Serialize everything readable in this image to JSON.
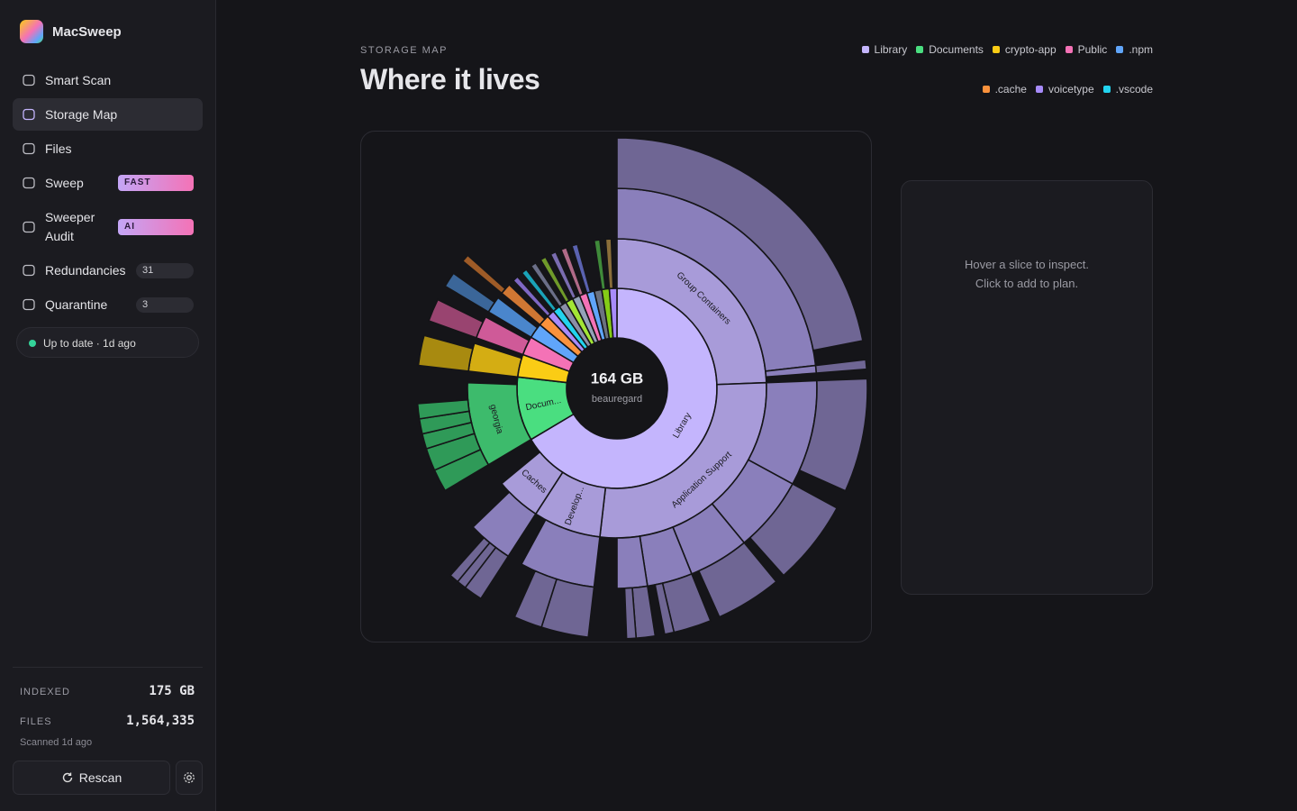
{
  "sidebar": {
    "app_name": "MacSweep",
    "nav": [
      {
        "label": "Smart Scan"
      },
      {
        "label": "Storage Map",
        "active": true
      },
      {
        "label": "Files"
      },
      {
        "label": "Sweep",
        "badge": "FAST"
      },
      {
        "label": "Sweeper Audit",
        "badge": "AI"
      },
      {
        "label": "Redundancies",
        "count": 31
      },
      {
        "label": "Quarantine",
        "count": 3
      }
    ],
    "status": "Up to date · 1d ago",
    "stats": [
      {
        "label": "INDEXED",
        "value": "175 GB"
      },
      {
        "label": "FILES",
        "value": "1,564,335"
      }
    ],
    "scanned": "Scanned 1d ago",
    "rescan": "Rescan"
  },
  "header": {
    "eyebrow": "STORAGE MAP",
    "title": "Where it lives"
  },
  "legend": [
    {
      "name": "Library",
      "color": "#c4b5fd"
    },
    {
      "name": "Documents",
      "color": "#4ade80"
    },
    {
      "name": "crypto-app",
      "color": "#facc15"
    },
    {
      "name": "Public",
      "color": "#f472b6"
    },
    {
      "name": ".npm",
      "color": "#60a5fa"
    },
    {
      "name": ".cache",
      "color": "#fb923c"
    },
    {
      "name": "voicetype",
      "color": "#a78bfa"
    },
    {
      "name": ".vscode",
      "color": "#22d3ee"
    }
  ],
  "sunburst": {
    "center_value": "164 GB",
    "center_label": "beauregard",
    "nodes": [
      {
        "label": "Library",
        "size": 109,
        "color": "#c4b5fd",
        "children": [
          {
            "label": "Group Containers",
            "size": 40,
            "color": "#a89bd9",
            "children": [
              {
                "size": 38,
                "color": "#8a7fbb",
                "children": [
                  {
                    "size": 36,
                    "color": "#6f6694"
                  }
                ]
              },
              {
                "size": 1,
                "color": "#8a7fbb",
                "children": [
                  {
                    "size": 1,
                    "color": "#6f6694"
                  }
                ]
              }
            ]
          },
          {
            "label": "Application Support",
            "size": 45,
            "color": "#a89bd9",
            "children": [
              {
                "size": 14,
                "color": "#8a7fbb",
                "children": [
                  {
                    "size": 12,
                    "color": "#6f6694"
                  }
                ]
              },
              {
                "size": 10,
                "color": "#8a7fbb",
                "children": [
                  {
                    "size": 9,
                    "color": "#6f6694"
                  }
                ]
              },
              {
                "size": 8,
                "color": "#8a7fbb",
                "children": [
                  {
                    "size": 7,
                    "color": "#6f6694"
                  }
                ]
              },
              {
                "size": 6,
                "color": "#8a7fbb",
                "children": [
                  {
                    "size": 4,
                    "color": "#6f6694"
                  },
                  {
                    "size": 1,
                    "color": "#6f6694"
                  }
                ]
              },
              {
                "size": 4,
                "color": "#8a7fbb",
                "children": [
                  {
                    "size": 2,
                    "color": "#6f6694"
                  },
                  {
                    "size": 1,
                    "color": "#6f6694"
                  }
                ]
              }
            ]
          },
          {
            "label": "Develop...",
            "size": 12,
            "color": "#a89bd9",
            "children": [
              {
                "size": 10,
                "color": "#8a7fbb",
                "children": [
                  {
                    "size": 5,
                    "color": "#6f6694"
                  },
                  {
                    "size": 3,
                    "color": "#6f6694"
                  }
                ]
              }
            ]
          },
          {
            "label": "Caches",
            "size": 8,
            "color": "#a89bd9",
            "children": [
              {
                "size": 6,
                "color": "#8a7fbb",
                "children": [
                  {
                    "size": 2,
                    "color": "#6f6694"
                  },
                  {
                    "size": 1,
                    "color": "#6f6694"
                  },
                  {
                    "size": 1,
                    "color": "#6f6694"
                  }
                ]
              }
            ]
          }
        ]
      },
      {
        "label": "Docum...",
        "size": 17,
        "color": "#4ade80",
        "children": [
          {
            "label": "georgia",
            "size": 15,
            "color": "#3dbb6c",
            "children": [
              {
                "size": 3,
                "color": "#2f9a58"
              },
              {
                "size": 3,
                "color": "#2f9a58"
              },
              {
                "size": 2,
                "color": "#2f9a58"
              },
              {
                "size": 2,
                "color": "#2f9a58"
              },
              {
                "size": 2,
                "color": "#2f9a58"
              }
            ]
          }
        ]
      },
      {
        "size": 6,
        "color": "#facc15",
        "children": [
          {
            "size": 5,
            "color": "#d4ad13",
            "children": [
              {
                "size": 4,
                "color": "#a88a10"
              }
            ]
          }
        ]
      },
      {
        "size": 5,
        "color": "#f472b6",
        "children": [
          {
            "size": 4,
            "color": "#cf5a98",
            "children": [
              {
                "size": 3,
                "color": "#994470"
              }
            ]
          }
        ]
      },
      {
        "size": 4,
        "color": "#60a5fa",
        "children": [
          {
            "size": 3,
            "color": "#4a86cc",
            "children": [
              {
                "size": 2,
                "color": "#3b6699"
              }
            ]
          }
        ]
      },
      {
        "size": 3,
        "color": "#fb923c",
        "children": [
          {
            "size": 2,
            "color": "#d07733",
            "children": [
              {
                "size": 1,
                "color": "#9e5b27"
              }
            ]
          }
        ]
      },
      {
        "size": 2,
        "color": "#a78bfa",
        "children": [
          {
            "size": 1,
            "color": "#7e68c4"
          }
        ]
      },
      {
        "size": 2,
        "color": "#22d3ee",
        "children": [
          {
            "size": 1,
            "color": "#1aa3b8"
          }
        ]
      },
      {
        "size": 2,
        "color": "#8b8fa8",
        "children": [
          {
            "size": 1,
            "color": "#6b6f88"
          }
        ]
      },
      {
        "size": 2,
        "color": "#a3e635",
        "children": [
          {
            "size": 1,
            "color": "#6f9a2a"
          }
        ]
      },
      {
        "size": 2,
        "color": "#94a3b8",
        "children": [
          {
            "size": 1,
            "color": "#7a6cb0"
          }
        ]
      },
      {
        "size": 2,
        "color": "#f472b6",
        "children": [
          {
            "size": 1,
            "color": "#b06a88"
          }
        ]
      },
      {
        "size": 2,
        "color": "#60a5fa",
        "children": [
          {
            "size": 1,
            "color": "#5a62b0"
          }
        ]
      },
      {
        "size": 2,
        "color": "#6b7280"
      },
      {
        "size": 2,
        "color": "#84cc16",
        "children": [
          {
            "size": 1,
            "color": "#3f8a3a"
          }
        ]
      },
      {
        "size": 2,
        "color": "#a78bfa",
        "children": [
          {
            "size": 1,
            "color": "#8a6e3a"
          }
        ]
      }
    ]
  },
  "panel": {
    "line1": "Hover a slice to inspect.",
    "line2": "Click to add to plan."
  }
}
